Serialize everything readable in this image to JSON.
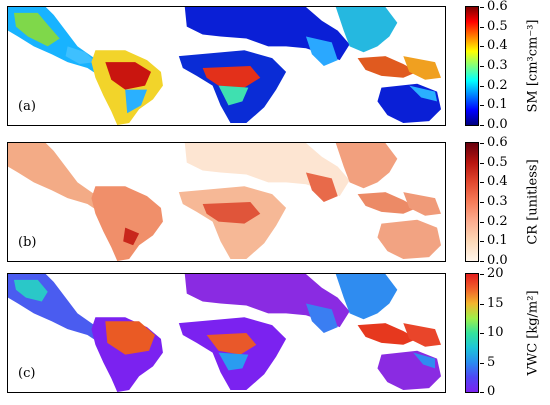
{
  "panels": [
    {
      "id": "a",
      "label": "(a)",
      "colorbar_label": "SM [cm³cm⁻³]",
      "ticks": [
        "0.6",
        "0.5",
        "0.4",
        "0.3",
        "0.2",
        "0.1",
        "0.0"
      ],
      "colors": {
        "ocean": "#ffffff",
        "low": "#0a1fd6",
        "mid": "#2aa8ff",
        "high": "#8fe36a",
        "peak": "#b30d0d"
      },
      "gradient": [
        "#00007f",
        "#0000ff",
        "#007fff",
        "#00ffff",
        "#7fff7f",
        "#ffff00",
        "#ff7f00",
        "#ff0000",
        "#7f0000"
      ]
    },
    {
      "id": "b",
      "label": "(b)",
      "colorbar_label": "CR [unitless]",
      "ticks": [
        "0.6",
        "0.5",
        "0.4",
        "0.3",
        "0.2",
        "0.1",
        "0.0"
      ],
      "colors": {
        "ocean": "#ffffff",
        "low": "#fbe3cf",
        "mid": "#f2a17d",
        "high": "#e35b3f",
        "peak": "#a3120f"
      },
      "gradient": [
        "#fff5eb",
        "#fdd9b8",
        "#fcae91",
        "#f67d5a",
        "#e2492f",
        "#b8150f",
        "#67000d"
      ]
    },
    {
      "id": "c",
      "label": "(c)",
      "colorbar_label": "VWC [kg/m²]",
      "ticks": [
        "20",
        "15",
        "10",
        "5",
        "0"
      ],
      "colors": {
        "ocean": "#ffffff",
        "low": "#8a2be2",
        "mid": "#2f8cf0",
        "high": "#3fe09a",
        "peak": "#e8421f"
      },
      "gradient": [
        "#7b22f0",
        "#4f47f5",
        "#2a8cf0",
        "#1dc5d8",
        "#34e39c",
        "#9ff04a",
        "#f2b62e",
        "#f0602a",
        "#e31e1e"
      ]
    }
  ]
}
